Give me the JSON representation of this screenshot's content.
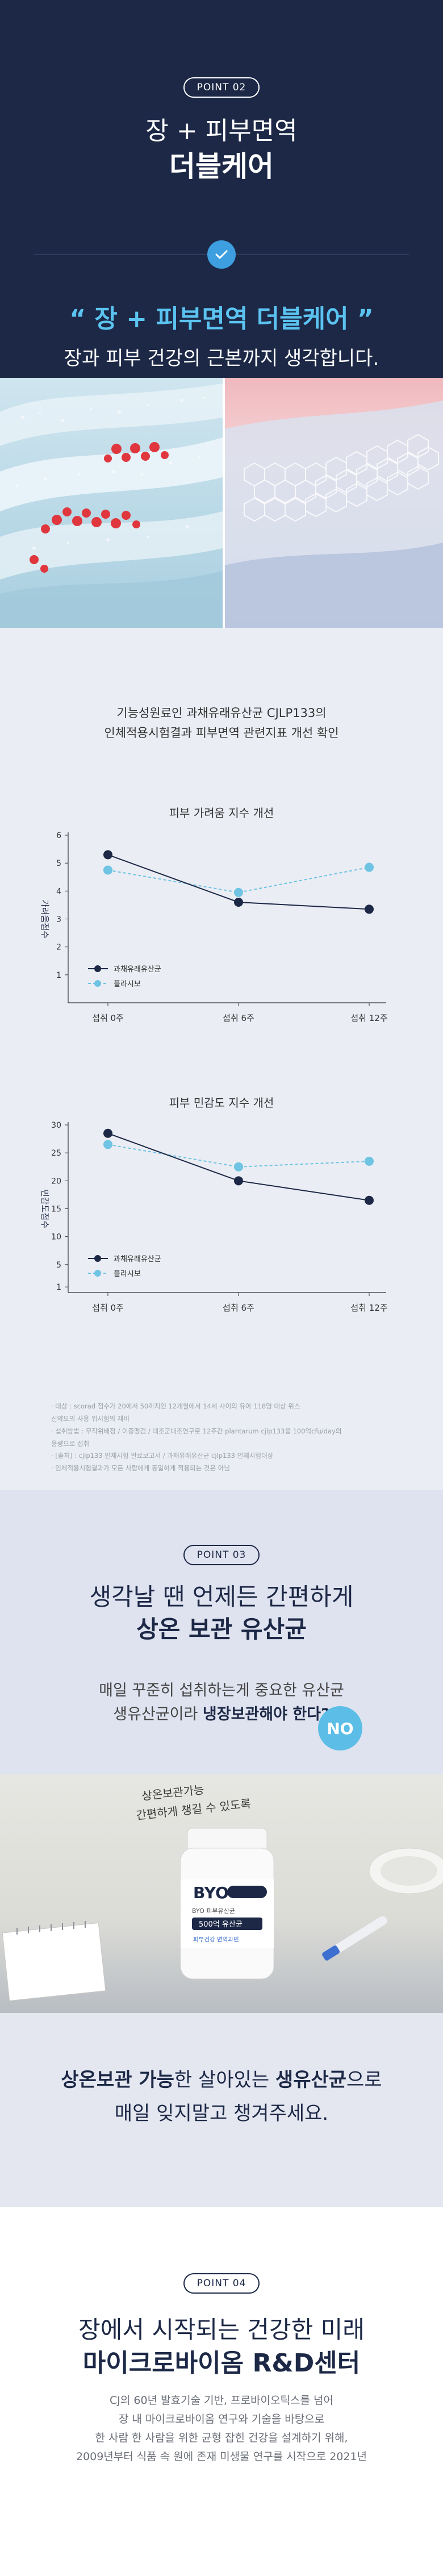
{
  "point02": {
    "badge": "POINT 02",
    "title_line1": "장 + 피부면역",
    "title_line2": "더블케어",
    "quote": "“ 장 + 피부면역 더블케어 ”",
    "subtitle": "장과 피부 건강의 근본까지 생각합니다."
  },
  "study": {
    "intro_line1": "기능성원료인 과채유래유산균 CJLP133의",
    "intro_line2": "인체적용시험결과 피부면역 관련지표 개선 확인"
  },
  "chart_data": [
    {
      "type": "line",
      "title": "피부 가려움 지수 개선",
      "ylabel": "가려움점수",
      "xlabel": "",
      "categories": [
        "섭취 0주",
        "섭취 6주",
        "섭취 12주"
      ],
      "ylim": [
        0,
        6
      ],
      "yticks": [
        1,
        2,
        3,
        4,
        5,
        6
      ],
      "series": [
        {
          "name": "과채유래유산균",
          "values": [
            5.3,
            3.6,
            3.35
          ],
          "color": "#1c2846",
          "style": "solid"
        },
        {
          "name": "플라시보",
          "values": [
            4.75,
            3.95,
            4.85
          ],
          "color": "#6fc4e4",
          "style": "dashed"
        }
      ],
      "legend": "bottom-left"
    },
    {
      "type": "line",
      "title": "피부 민감도 지수 개선",
      "ylabel": "민감도점수",
      "xlabel": "",
      "categories": [
        "섭취 0주",
        "섭취 6주",
        "섭취 12주"
      ],
      "ylim": [
        0,
        30
      ],
      "yticks": [
        1,
        5,
        10,
        15,
        20,
        25,
        30
      ],
      "series": [
        {
          "name": "과채유래유산균",
          "values": [
            28.5,
            20.0,
            16.5
          ],
          "color": "#1c2846",
          "style": "solid"
        },
        {
          "name": "플라시보",
          "values": [
            26.5,
            22.5,
            23.5
          ],
          "color": "#6fc4e4",
          "style": "dashed"
        }
      ],
      "legend": "bottom-left"
    }
  ],
  "footnotes": [
    "· 대상 : scorad 점수가 20에서 50까지인 12개월에서 14세 사이의 유아 118명 대상 위스",
    "  신약모의 사용 위시험의 재비",
    "· 섭취방법 : 무작위배정 / 이중맹검 / 대조군대조연구로 12주간 plantarum cjlp133을 100억cfu/day의",
    "  용량으로 섭취",
    "· [출처] : cjlp133 인체시험 완료보고서 / 과채유래유산균 cjlp133 인체시험대상",
    "· 인체적용시험결과가 모든 사람에게 동일하게 적용되는 것은 아님"
  ],
  "point03": {
    "badge": "POINT 03",
    "title_line1": "생각날 땐 언제든 간편하게",
    "title_line2": "상온 보관 유산균",
    "body_line1": "매일 꾸준히 섭취하는게 중요한 유산균",
    "body_line2_prefix": "생유산균이라 ",
    "body_line2_bold": "냉장보관해야 한다?",
    "no_badge": "NO"
  },
  "product": {
    "handwriting": "상온보관가능\n간편하게 챙길 수 있도록",
    "brand": "BYO",
    "label_top": "BYO 피부유산균",
    "count": "500억 유산균",
    "note": "피부건강 면역과민"
  },
  "point03b": {
    "line1_bold_a": "상온보관 가능",
    "line1_mid": "한 살아있는 ",
    "line1_bold_b": "생유산균",
    "line1_end": "으로",
    "line2": "매일 잊지말고 챙겨주세요."
  },
  "point04": {
    "badge": "POINT 04",
    "title_line1": "장에서 시작되는 건강한 미래",
    "title_line2": "마이크로바이옴 R&D센터",
    "body_line1": "CJ의 60년 발효기술 기반, 프로바이오틱스를 넘어",
    "body_line2": "장 내 마이크로바이옴 연구와 기술을 바탕으로",
    "body_line3": "한 사람 한 사람을 위한 균형 잡힌 건강을 설계하기 위해,",
    "body_line4": "2009년부터 식품 속 원에 존재 미생물 연구를 시작으로 2021년"
  },
  "colors": {
    "navy": "#1c2846",
    "accent_blue": "#3d9fe0",
    "sky": "#5bc3f0"
  }
}
